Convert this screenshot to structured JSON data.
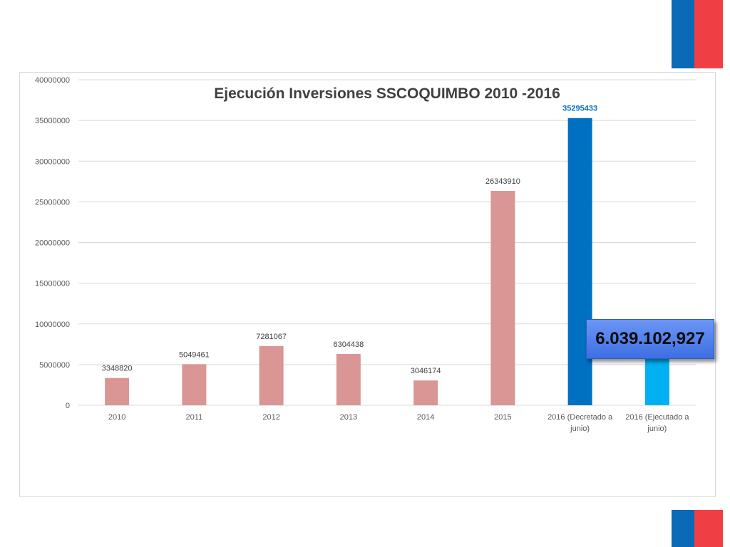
{
  "chart_data": {
    "type": "bar",
    "title": "Ejecución Inversiones SSCOQUIMBO 2010 -2016",
    "categories": [
      "2010",
      "2011",
      "2012",
      "2013",
      "2014",
      "2015",
      "2016 (Decretado a junio)",
      "2016 (Ejecutado a junio)"
    ],
    "values": [
      3348820,
      5049461,
      7281067,
      6304438,
      3046174,
      26343910,
      35295433,
      6039102.927
    ],
    "data_labels": [
      "3348820",
      "5049461",
      "7281067",
      "6304438",
      "3046174",
      "26343910",
      "35295433",
      ""
    ],
    "bar_colors": [
      "#d99694",
      "#d99694",
      "#d99694",
      "#d99694",
      "#d99694",
      "#d99694",
      "#0070c0",
      "#00b0f0"
    ],
    "label_colors": [
      "#404040",
      "#404040",
      "#404040",
      "#404040",
      "#404040",
      "#404040",
      "#0070c0",
      "#404040"
    ],
    "ylim": [
      0,
      40000000
    ],
    "yticks": [
      0,
      5000000,
      10000000,
      15000000,
      20000000,
      25000000,
      30000000,
      35000000,
      40000000
    ],
    "grid": true,
    "xlabel": "",
    "ylabel": ""
  },
  "callout": {
    "text": "6.039.102,927"
  },
  "colors": {
    "brand_blue": "#0a6ab8",
    "brand_red": "#ef3f44"
  }
}
